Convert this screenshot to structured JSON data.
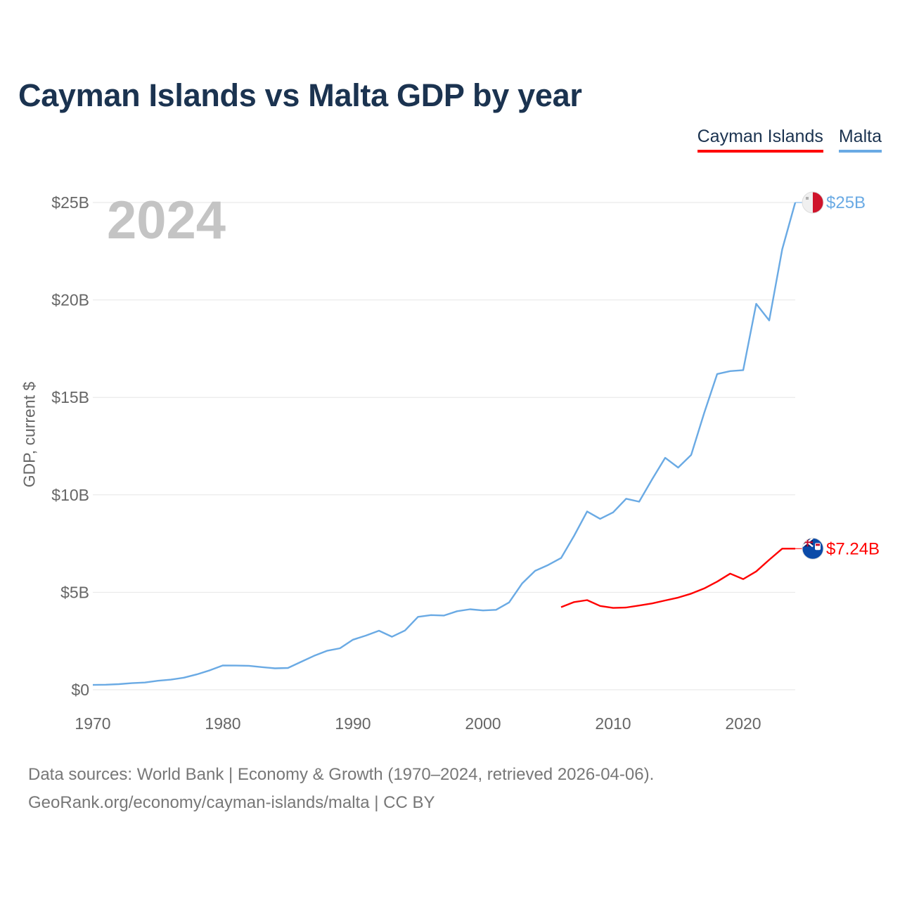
{
  "title": "Cayman Islands vs Malta GDP by year",
  "legend": {
    "cayman": "Cayman Islands",
    "malta": "Malta"
  },
  "ylabel": "GDP, current $",
  "year_overlay": "2024",
  "end_labels": {
    "malta": "$25B",
    "cayman": "$7.24B"
  },
  "footer": {
    "line1": "Data sources: World Bank | Economy & Growth (1970–2024, retrieved 2026-04-06).",
    "line2": "GeoRank.org/economy/cayman-islands/malta | CC BY"
  },
  "colors": {
    "cayman": "#ff0000",
    "malta": "#6aaae4",
    "title": "#1b3350",
    "grid": "#e6e6e6"
  },
  "chart_data": {
    "type": "line",
    "title": "Cayman Islands vs Malta GDP by year",
    "xlabel": "",
    "ylabel": "GDP, current $",
    "xlim": [
      1970,
      2024
    ],
    "ylim": [
      0,
      25
    ],
    "x_ticks": [
      1970,
      1980,
      1990,
      2000,
      2010,
      2020
    ],
    "x_tick_labels": [
      "1970",
      "1980",
      "1990",
      "2000",
      "2010",
      "2020"
    ],
    "y_ticks": [
      0,
      5,
      10,
      15,
      20,
      25
    ],
    "y_tick_labels": [
      "$0",
      "$5B",
      "$10B",
      "$15B",
      "$20B",
      "$25B"
    ],
    "units": "billions of current US$",
    "series": [
      {
        "name": "Malta",
        "color": "#6aaae4",
        "x": [
          1970,
          1971,
          1972,
          1973,
          1974,
          1975,
          1976,
          1977,
          1978,
          1979,
          1980,
          1981,
          1982,
          1983,
          1984,
          1985,
          1986,
          1987,
          1988,
          1989,
          1990,
          1991,
          1992,
          1993,
          1994,
          1995,
          1996,
          1997,
          1998,
          1999,
          2000,
          2001,
          2002,
          2003,
          2004,
          2005,
          2006,
          2007,
          2008,
          2009,
          2010,
          2011,
          2012,
          2013,
          2014,
          2015,
          2016,
          2017,
          2018,
          2019,
          2020,
          2021,
          2022,
          2023,
          2024
        ],
        "values": [
          0.25,
          0.26,
          0.29,
          0.34,
          0.37,
          0.46,
          0.52,
          0.62,
          0.79,
          1.0,
          1.25,
          1.24,
          1.23,
          1.16,
          1.1,
          1.12,
          1.43,
          1.74,
          2.0,
          2.13,
          2.57,
          2.78,
          3.03,
          2.72,
          3.04,
          3.74,
          3.83,
          3.81,
          4.03,
          4.13,
          4.07,
          4.1,
          4.48,
          5.45,
          6.1,
          6.4,
          6.76,
          7.9,
          9.15,
          8.77,
          9.1,
          9.8,
          9.65,
          10.8,
          11.9,
          11.4,
          12.05,
          14.2,
          16.2,
          16.35,
          16.4,
          19.8,
          18.95,
          22.6,
          25.0
        ]
      },
      {
        "name": "Cayman Islands",
        "color": "#ff0000",
        "x": [
          2006,
          2007,
          2008,
          2009,
          2010,
          2011,
          2012,
          2013,
          2014,
          2015,
          2016,
          2017,
          2018,
          2019,
          2020,
          2021,
          2022,
          2023,
          2024
        ],
        "values": [
          4.24,
          4.5,
          4.6,
          4.3,
          4.2,
          4.22,
          4.32,
          4.43,
          4.58,
          4.73,
          4.93,
          5.2,
          5.55,
          5.96,
          5.68,
          6.07,
          6.67,
          7.24,
          7.24
        ]
      }
    ]
  }
}
